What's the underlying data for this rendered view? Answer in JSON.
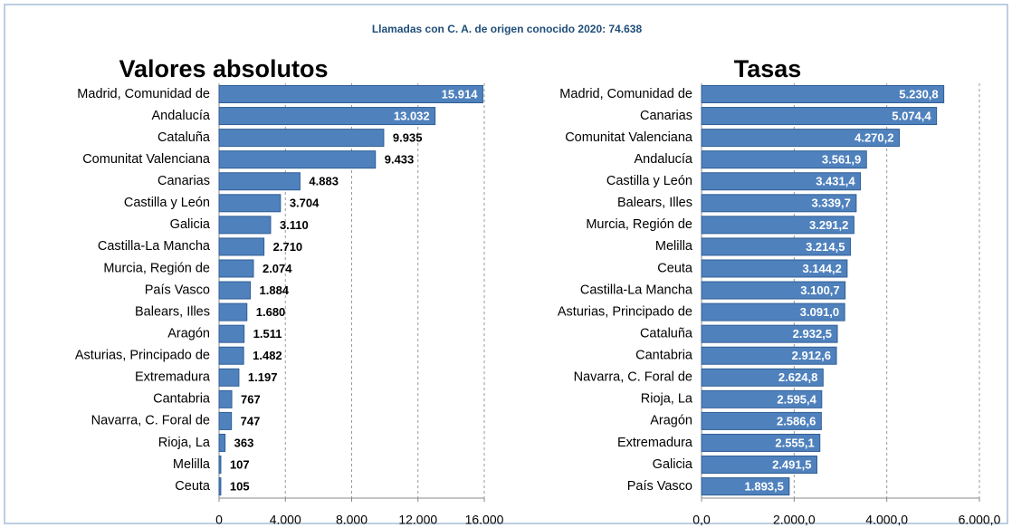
{
  "title": "Llamadas con C. A. de origen conocido 2020: 74.638",
  "chart_data": [
    {
      "type": "bar",
      "orientation": "horizontal",
      "title": "Valores absolutos",
      "color": "#4f81bd",
      "grid": true,
      "value_label_position": "auto",
      "categories": [
        "Madrid, Comunidad de",
        "Andalucía",
        "Cataluña",
        "Comunitat Valenciana",
        "Canarias",
        "Castilla y León",
        "Galicia",
        "Castilla-La Mancha",
        "Murcia, Región de",
        "País Vasco",
        "Balears, Illes",
        "Aragón",
        "Asturias, Principado de",
        "Extremadura",
        "Cantabria",
        "Navarra, C. Foral de",
        "Rioja, La",
        "Melilla",
        "Ceuta"
      ],
      "values": [
        15914,
        13032,
        9935,
        9433,
        4883,
        3704,
        3110,
        2710,
        2074,
        1884,
        1680,
        1511,
        1482,
        1197,
        767,
        747,
        363,
        107,
        105
      ],
      "value_labels": [
        "15.914",
        "13.032",
        "9.935",
        "9.433",
        "4.883",
        "3.704",
        "3.110",
        "2.710",
        "2.074",
        "1.884",
        "1.680",
        "1.511",
        "1.482",
        "1.197",
        "767",
        "747",
        "363",
        "107",
        "105"
      ],
      "xlim": [
        0,
        16000
      ],
      "xticks": [
        0,
        {
          "value": 4000,
          "label": "4.000"
        },
        {
          "value": 8000,
          "label": "8.000"
        },
        {
          "value": 12000,
          "label": "12.000"
        },
        {
          "value": 16000,
          "label": "16.000"
        }
      ]
    },
    {
      "type": "bar",
      "orientation": "horizontal",
      "title": "Tasas",
      "color": "#4f81bd",
      "grid": true,
      "value_label_position": "inside",
      "categories": [
        "Madrid, Comunidad de",
        "Canarias",
        "Comunitat Valenciana",
        "Andalucía",
        "Castilla y León",
        "Balears, Illes",
        "Murcia, Región de",
        "Melilla",
        "Ceuta",
        "Castilla-La Mancha",
        "Asturias, Principado de",
        "Cataluña",
        "Cantabria",
        "Navarra, C. Foral de",
        "Rioja, La",
        "Aragón",
        "Extremadura",
        "Galicia",
        "País Vasco"
      ],
      "values": [
        5230.8,
        5074.4,
        4270.2,
        3561.9,
        3431.4,
        3339.7,
        3291.2,
        3214.5,
        3144.2,
        3100.7,
        3091.0,
        2932.5,
        2912.6,
        2624.8,
        2595.4,
        2586.6,
        2555.1,
        2491.5,
        1893.5
      ],
      "value_labels": [
        "5.230,8",
        "5.074,4",
        "4.270,2",
        "3.561,9",
        "3.431,4",
        "3.339,7",
        "3.291,2",
        "3.214,5",
        "3.144,2",
        "3.100,7",
        "3.091,0",
        "2.932,5",
        "2.912,6",
        "2.624,8",
        "2.595,4",
        "2.586,6",
        "2.555,1",
        "2.491,5",
        "1.893,5"
      ],
      "xlim": [
        0,
        6000
      ],
      "xticks": [
        {
          "value": 0,
          "label": "0,0"
        },
        {
          "value": 2000,
          "label": "2.000,0"
        },
        {
          "value": 4000,
          "label": "4.000,0"
        },
        {
          "value": 6000,
          "label": "6.000,0"
        }
      ]
    }
  ]
}
